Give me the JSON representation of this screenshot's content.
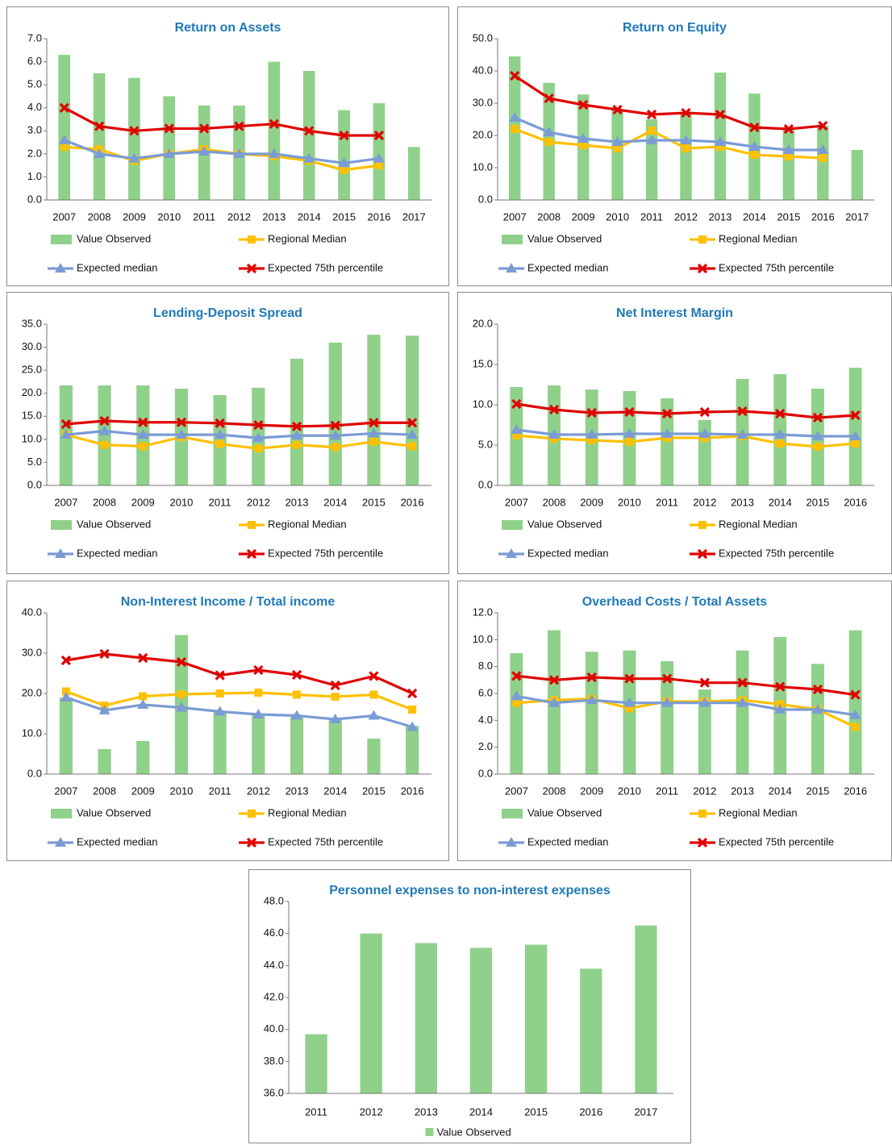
{
  "chart_data": [
    {
      "type": "combo",
      "title": "Return on Assets",
      "categories": [
        "2007",
        "2008",
        "2009",
        "2010",
        "2011",
        "2012",
        "2013",
        "2014",
        "2015",
        "2016",
        "2017"
      ],
      "ylim": [
        0,
        7
      ],
      "yticks": [
        {
          "value": 0,
          "label": "0.0"
        },
        {
          "value": 1,
          "label": "1.0"
        },
        {
          "value": 2,
          "label": "2.0"
        },
        {
          "value": 3,
          "label": "3.0"
        },
        {
          "value": 4,
          "label": "4.0"
        },
        {
          "value": 5,
          "label": "5.0"
        },
        {
          "value": 6,
          "label": "6.0"
        },
        {
          "value": 7,
          "label": "7.0"
        }
      ],
      "series": [
        {
          "name": "Value Observed",
          "kind": "bar",
          "color": "#8fd18a",
          "values": [
            6.3,
            5.5,
            5.3,
            4.5,
            4.1,
            4.1,
            6.0,
            5.6,
            3.9,
            4.2,
            2.3
          ]
        },
        {
          "name": "Regional Median",
          "kind": "line",
          "marker": "square",
          "color": "#ffc000",
          "values": [
            2.3,
            2.2,
            1.7,
            2.0,
            2.2,
            2.0,
            1.9,
            1.7,
            1.3,
            1.5,
            null
          ]
        },
        {
          "name": "Expected median",
          "kind": "line",
          "marker": "triangle",
          "color": "#7b9bd6",
          "values": [
            2.6,
            2.0,
            1.8,
            2.0,
            2.1,
            2.0,
            2.0,
            1.8,
            1.6,
            1.8,
            null
          ]
        },
        {
          "name": "Expected 75th percentile",
          "kind": "line",
          "marker": "x",
          "color": "#e00000",
          "values": [
            4.0,
            3.2,
            3.0,
            3.1,
            3.1,
            3.2,
            3.3,
            3.0,
            2.8,
            2.8,
            null
          ]
        }
      ]
    },
    {
      "type": "combo",
      "title": "Return on Equity",
      "categories": [
        "2007",
        "2008",
        "2009",
        "2010",
        "2011",
        "2012",
        "2013",
        "2014",
        "2015",
        "2016",
        "2017"
      ],
      "ylim": [
        0,
        50
      ],
      "yticks": [
        {
          "value": 0,
          "label": "0.0"
        },
        {
          "value": 10,
          "label": "10.0"
        },
        {
          "value": 20,
          "label": "20.0"
        },
        {
          "value": 30,
          "label": "30.0"
        },
        {
          "value": 40,
          "label": "40.0"
        },
        {
          "value": 50,
          "label": "50.0"
        }
      ],
      "series": [
        {
          "name": "Value Observed",
          "kind": "bar",
          "color": "#8fd18a",
          "values": [
            44.5,
            36.3,
            32.7,
            28.0,
            25.0,
            27.0,
            39.5,
            33.0,
            22.5,
            23.0,
            15.5
          ]
        },
        {
          "name": "Regional Median",
          "kind": "line",
          "marker": "square",
          "color": "#ffc000",
          "values": [
            22.0,
            18.0,
            17.0,
            16.0,
            21.5,
            16.0,
            16.5,
            14.0,
            13.5,
            13.0,
            null
          ]
        },
        {
          "name": "Expected median",
          "kind": "line",
          "marker": "triangle",
          "color": "#7b9bd6",
          "values": [
            25.5,
            21.0,
            19.0,
            18.0,
            18.5,
            18.5,
            18.0,
            16.5,
            15.5,
            15.5,
            null
          ]
        },
        {
          "name": "Expected 75th percentile",
          "kind": "line",
          "marker": "x",
          "color": "#e00000",
          "values": [
            38.5,
            31.5,
            29.5,
            28.0,
            26.5,
            27.0,
            26.5,
            22.5,
            22.0,
            23.0,
            null
          ]
        }
      ]
    },
    {
      "type": "combo",
      "title": "Lending-Deposit Spread",
      "categories": [
        "2007",
        "2008",
        "2009",
        "2010",
        "2011",
        "2012",
        "2013",
        "2014",
        "2015",
        "2016"
      ],
      "ylim": [
        0,
        35
      ],
      "yticks": [
        {
          "value": 0,
          "label": "0.0"
        },
        {
          "value": 5,
          "label": "5.0"
        },
        {
          "value": 10,
          "label": "10.0"
        },
        {
          "value": 15,
          "label": "15.0"
        },
        {
          "value": 20,
          "label": "20.0"
        },
        {
          "value": 25,
          "label": "25.0"
        },
        {
          "value": 30,
          "label": "30.0"
        },
        {
          "value": 35,
          "label": "35.0"
        }
      ],
      "series": [
        {
          "name": "Value Observed",
          "kind": "bar",
          "color": "#8fd18a",
          "values": [
            21.7,
            21.7,
            21.7,
            21.0,
            19.6,
            21.2,
            27.5,
            31.0,
            32.7,
            32.5
          ]
        },
        {
          "name": "Regional Median",
          "kind": "line",
          "marker": "square",
          "color": "#ffc000",
          "values": [
            11.0,
            8.8,
            8.5,
            10.5,
            9.0,
            8.0,
            8.8,
            8.3,
            9.5,
            8.5
          ]
        },
        {
          "name": "Expected median",
          "kind": "line",
          "marker": "triangle",
          "color": "#7b9bd6",
          "values": [
            11.0,
            11.8,
            11.0,
            11.0,
            11.0,
            10.3,
            10.8,
            10.8,
            11.3,
            11.0
          ]
        },
        {
          "name": "Expected 75th percentile",
          "kind": "line",
          "marker": "x",
          "color": "#e00000",
          "values": [
            13.3,
            14.0,
            13.7,
            13.7,
            13.5,
            13.1,
            12.8,
            13.0,
            13.6,
            13.6
          ]
        }
      ]
    },
    {
      "type": "combo",
      "title": "Net Interest Margin",
      "categories": [
        "2007",
        "2008",
        "2009",
        "2010",
        "2011",
        "2012",
        "2013",
        "2014",
        "2015",
        "2016"
      ],
      "ylim": [
        0,
        20
      ],
      "yticks": [
        {
          "value": 0,
          "label": "0.0"
        },
        {
          "value": 5,
          "label": "5.0"
        },
        {
          "value": 10,
          "label": "10.0"
        },
        {
          "value": 15,
          "label": "15.0"
        },
        {
          "value": 20,
          "label": "20.0"
        }
      ],
      "series": [
        {
          "name": "Value Observed",
          "kind": "bar",
          "color": "#8fd18a",
          "values": [
            12.2,
            12.4,
            11.9,
            11.7,
            10.8,
            8.1,
            13.2,
            13.8,
            12.0,
            14.6
          ]
        },
        {
          "name": "Regional Median",
          "kind": "line",
          "marker": "square",
          "color": "#ffc000",
          "values": [
            6.2,
            5.8,
            5.6,
            5.4,
            5.9,
            5.9,
            6.1,
            5.2,
            4.8,
            5.2
          ]
        },
        {
          "name": "Expected median",
          "kind": "line",
          "marker": "triangle",
          "color": "#7b9bd6",
          "values": [
            6.9,
            6.3,
            6.3,
            6.4,
            6.4,
            6.4,
            6.3,
            6.3,
            6.1,
            6.1
          ]
        },
        {
          "name": "Expected 75th percentile",
          "kind": "line",
          "marker": "x",
          "color": "#e00000",
          "values": [
            10.1,
            9.4,
            9.0,
            9.1,
            8.9,
            9.1,
            9.2,
            8.9,
            8.4,
            8.7
          ]
        }
      ]
    },
    {
      "type": "combo",
      "title": "Non-Interest Income / Total income",
      "categories": [
        "2007",
        "2008",
        "2009",
        "2010",
        "2011",
        "2012",
        "2013",
        "2014",
        "2015",
        "2016"
      ],
      "ylim": [
        0,
        40
      ],
      "yticks": [
        {
          "value": 0,
          "label": "0.0"
        },
        {
          "value": 10,
          "label": "10.0"
        },
        {
          "value": 20,
          "label": "20.0"
        },
        {
          "value": 30,
          "label": "30.0"
        },
        {
          "value": 40,
          "label": "40.0"
        }
      ],
      "series": [
        {
          "name": "Value Observed",
          "kind": "bar",
          "color": "#8fd18a",
          "values": [
            19.0,
            6.2,
            8.2,
            34.5,
            15.5,
            15.0,
            14.5,
            13.5,
            8.8,
            12.0
          ]
        },
        {
          "name": "Regional Median",
          "kind": "line",
          "marker": "square",
          "color": "#ffc000",
          "values": [
            20.5,
            17.0,
            19.3,
            19.8,
            20.0,
            20.2,
            19.7,
            19.2,
            19.7,
            16.0
          ]
        },
        {
          "name": "Expected median",
          "kind": "line",
          "marker": "triangle",
          "color": "#7b9bd6",
          "values": [
            19.0,
            15.8,
            17.2,
            16.5,
            15.5,
            14.8,
            14.5,
            13.6,
            14.5,
            11.7
          ]
        },
        {
          "name": "Expected 75th percentile",
          "kind": "line",
          "marker": "x",
          "color": "#e00000",
          "values": [
            28.2,
            29.8,
            28.8,
            27.8,
            24.5,
            25.8,
            24.6,
            22.0,
            24.3,
            20.0
          ]
        }
      ]
    },
    {
      "type": "combo",
      "title": "Overhead Costs / Total Assets",
      "categories": [
        "2007",
        "2008",
        "2009",
        "2010",
        "2011",
        "2012",
        "2013",
        "2014",
        "2015",
        "2016"
      ],
      "ylim": [
        0,
        12
      ],
      "yticks": [
        {
          "value": 0,
          "label": "0.0"
        },
        {
          "value": 2,
          "label": "2.0"
        },
        {
          "value": 4,
          "label": "4.0"
        },
        {
          "value": 6,
          "label": "6.0"
        },
        {
          "value": 8,
          "label": "8.0"
        },
        {
          "value": 10,
          "label": "10.0"
        },
        {
          "value": 12,
          "label": "12.0"
        }
      ],
      "series": [
        {
          "name": "Value Observed",
          "kind": "bar",
          "color": "#8fd18a",
          "values": [
            9.0,
            10.7,
            9.1,
            9.2,
            8.4,
            6.3,
            9.2,
            10.2,
            8.2,
            10.7
          ]
        },
        {
          "name": "Regional Median",
          "kind": "line",
          "marker": "square",
          "color": "#ffc000",
          "values": [
            5.3,
            5.5,
            5.6,
            4.9,
            5.4,
            5.4,
            5.5,
            5.2,
            4.8,
            3.5
          ]
        },
        {
          "name": "Expected median",
          "kind": "line",
          "marker": "triangle",
          "color": "#7b9bd6",
          "values": [
            5.8,
            5.3,
            5.5,
            5.3,
            5.3,
            5.3,
            5.3,
            4.8,
            4.8,
            4.4
          ]
        },
        {
          "name": "Expected 75th percentile",
          "kind": "line",
          "marker": "x",
          "color": "#e00000",
          "values": [
            7.3,
            7.0,
            7.2,
            7.1,
            7.1,
            6.8,
            6.8,
            6.5,
            6.3,
            5.9
          ]
        }
      ]
    },
    {
      "type": "bar",
      "title": "Personnel expenses to non-interest expenses",
      "categories": [
        "2011",
        "2012",
        "2013",
        "2014",
        "2015",
        "2016",
        "2017"
      ],
      "ylim": [
        36,
        48
      ],
      "yticks": [
        {
          "value": 36,
          "label": "36.0"
        },
        {
          "value": 38,
          "label": "38.0"
        },
        {
          "value": 40,
          "label": "40.0"
        },
        {
          "value": 42,
          "label": "42.0"
        },
        {
          "value": 44,
          "label": "44.0"
        },
        {
          "value": 46,
          "label": "46.0"
        },
        {
          "value": 48,
          "label": "48.0"
        }
      ],
      "series": [
        {
          "name": "Value Observed",
          "kind": "bar",
          "color": "#8fd18a",
          "values": [
            39.7,
            46.0,
            45.4,
            45.1,
            45.3,
            43.8,
            46.5
          ]
        }
      ]
    }
  ]
}
